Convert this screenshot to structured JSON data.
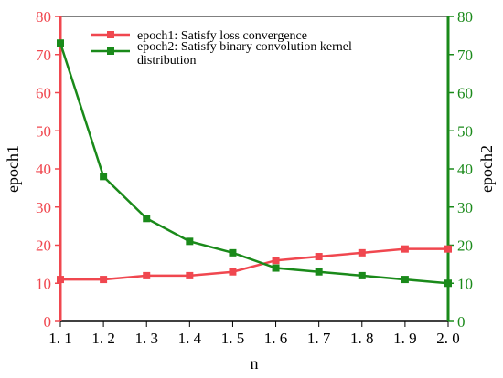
{
  "chart_data": {
    "type": "line",
    "title": "",
    "x": [
      1.1,
      1.2,
      1.3,
      1.4,
      1.5,
      1.6,
      1.7,
      1.8,
      1.9,
      2.0
    ],
    "x_tick_labels": [
      "1. 1",
      "1. 2",
      "1. 3",
      "1. 4",
      "1. 5",
      "1. 6",
      "1. 7",
      "1. 8",
      "1. 9",
      "2. 0"
    ],
    "xlabel": "n",
    "ylabel_left": "epoch1",
    "ylabel_right": "epoch2",
    "xlim": [
      1.1,
      2.0
    ],
    "ylim_left": [
      0,
      80
    ],
    "ylim_right": [
      0,
      80
    ],
    "y_ticks": [
      "0",
      "10",
      "20",
      "30",
      "40",
      "50",
      "60",
      "70",
      "80"
    ],
    "grid": false,
    "legend_position": "top-center",
    "series": [
      {
        "name": "epoch1: Satisfy loss convergence",
        "axis": "left",
        "color": "#f0474f",
        "marker": "square",
        "values": [
          11,
          11,
          12,
          12,
          13,
          16,
          17,
          18,
          19,
          19
        ]
      },
      {
        "name": "epoch2: Satisfy binary convolution kernel distribution",
        "legend_lines": [
          "epoch2: Satisfy binary convolution kernel",
          "distribution"
        ],
        "axis": "right",
        "color": "#1a8a1a",
        "marker": "square",
        "values": [
          73,
          38,
          27,
          21,
          18,
          14,
          13,
          12,
          11,
          10
        ]
      }
    ],
    "left_axis_color": "#f0474f",
    "right_axis_color": "#1a8a1a"
  }
}
